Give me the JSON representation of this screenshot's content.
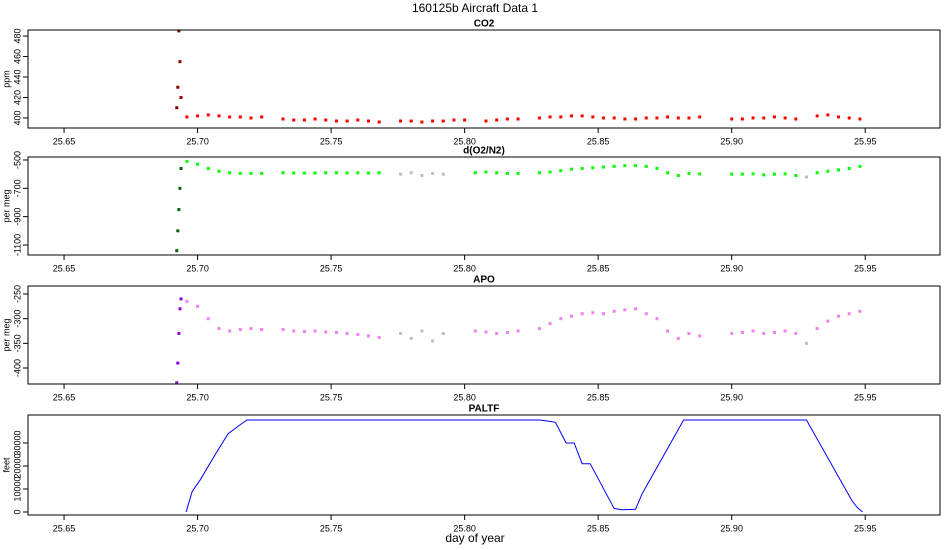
{
  "title": "160125b   Aircraft Data 1",
  "xlabel": "day of year",
  "chart_data": [
    {
      "type": "scatter",
      "title": "CO2",
      "ylabel": "ppm",
      "x": [
        25.6922,
        25.6926,
        25.693,
        25.6934,
        25.6938,
        25.696,
        25.7,
        25.704,
        25.708,
        25.712,
        25.716,
        25.72,
        25.724,
        25.728,
        25.732,
        25.736,
        25.74,
        25.744,
        25.748,
        25.752,
        25.756,
        25.76,
        25.764,
        25.768,
        25.772,
        25.776,
        25.78,
        25.784,
        25.788,
        25.792,
        25.796,
        25.8,
        25.804,
        25.808,
        25.812,
        25.816,
        25.82,
        25.824,
        25.828,
        25.832,
        25.836,
        25.84,
        25.844,
        25.848,
        25.852,
        25.856,
        25.86,
        25.864,
        25.868,
        25.872,
        25.876,
        25.88,
        25.884,
        25.888,
        25.892,
        25.896,
        25.9,
        25.904,
        25.908,
        25.912,
        25.916,
        25.92,
        25.924,
        25.928,
        25.932,
        25.936,
        25.94,
        25.944,
        25.948
      ],
      "series": [
        {
          "color": "#8b0000",
          "values": [
            410,
            430,
            485,
            455,
            420,
            null,
            null,
            null,
            null,
            null,
            null,
            null,
            null,
            null,
            null,
            null,
            null,
            null,
            null,
            null,
            null,
            null,
            null,
            null,
            null,
            null,
            null,
            null,
            null,
            null,
            null,
            null,
            null,
            null,
            null,
            null,
            null,
            null,
            null,
            null,
            null,
            null,
            null,
            null,
            null,
            null,
            null,
            null,
            null,
            null,
            null,
            null,
            null,
            null,
            null,
            null,
            null,
            null,
            null,
            null,
            null,
            null,
            null,
            null,
            null,
            null,
            null,
            null,
            null
          ]
        },
        {
          "color": "#ff0000",
          "values": [
            null,
            null,
            null,
            null,
            null,
            401,
            402,
            403,
            402,
            401,
            401,
            400,
            401,
            null,
            399,
            398,
            398,
            399,
            398,
            397,
            397,
            398,
            397,
            396,
            null,
            397,
            397,
            396,
            397,
            397,
            398,
            398,
            null,
            397,
            398,
            399,
            399,
            null,
            400,
            401,
            401,
            402,
            402,
            401,
            400,
            400,
            399,
            399,
            400,
            400,
            401,
            400,
            400,
            401,
            null,
            null,
            399,
            399,
            400,
            400,
            401,
            400,
            399,
            null,
            402,
            403,
            401,
            400,
            399
          ]
        }
      ],
      "xlim": [
        25.6365,
        25.978
      ],
      "xticks": [
        25.65,
        {
          "value": 25.7,
          "label": "25.70"
        },
        25.75,
        {
          "value": 25.8,
          "label": "25.80"
        },
        25.85,
        {
          "value": 25.9,
          "label": "25.90"
        },
        25.95
      ],
      "ylim": [
        390.2,
        485.9
      ],
      "yticks": [
        400,
        420,
        440,
        460,
        480
      ]
    },
    {
      "type": "scatter",
      "title": "d(O2/N2)",
      "ylabel": "per meg",
      "x": [
        25.6922,
        25.6926,
        25.693,
        25.6934,
        25.6938,
        25.696,
        25.7,
        25.704,
        25.708,
        25.712,
        25.716,
        25.72,
        25.724,
        25.728,
        25.732,
        25.736,
        25.74,
        25.744,
        25.748,
        25.752,
        25.756,
        25.76,
        25.764,
        25.768,
        25.772,
        25.776,
        25.78,
        25.784,
        25.788,
        25.792,
        25.796,
        25.8,
        25.804,
        25.808,
        25.812,
        25.816,
        25.82,
        25.824,
        25.828,
        25.832,
        25.836,
        25.84,
        25.844,
        25.848,
        25.852,
        25.856,
        25.86,
        25.864,
        25.868,
        25.872,
        25.876,
        25.88,
        25.884,
        25.888,
        25.892,
        25.896,
        25.9,
        25.904,
        25.908,
        25.912,
        25.916,
        25.92,
        25.924,
        25.928,
        25.932,
        25.936,
        25.94,
        25.944,
        25.948
      ],
      "series": [
        {
          "color": "#006400",
          "values": [
            -1140,
            -1000,
            -850,
            -700,
            -560,
            null,
            null,
            null,
            null,
            null,
            null,
            null,
            null,
            null,
            null,
            null,
            null,
            null,
            null,
            null,
            null,
            null,
            null,
            null,
            null,
            null,
            null,
            null,
            null,
            null,
            null,
            null,
            null,
            null,
            null,
            null,
            null,
            null,
            null,
            null,
            null,
            null,
            null,
            null,
            null,
            null,
            null,
            null,
            null,
            null,
            null,
            null,
            null,
            null,
            null,
            null,
            null,
            null,
            null,
            null,
            null,
            null,
            null,
            null,
            null,
            null,
            null,
            null,
            null
          ]
        },
        {
          "color": "#00ff00",
          "values": [
            null,
            null,
            null,
            null,
            null,
            -510,
            -530,
            -560,
            -580,
            -590,
            -595,
            -595,
            -595,
            null,
            -590,
            -592,
            -593,
            -592,
            -590,
            -590,
            -591,
            -590,
            -592,
            -590,
            null,
            null,
            null,
            null,
            null,
            null,
            null,
            null,
            -590,
            -585,
            -590,
            -595,
            -595,
            null,
            -590,
            -585,
            -575,
            -565,
            -560,
            -555,
            -550,
            -545,
            -540,
            -540,
            -545,
            -560,
            -590,
            -610,
            -595,
            -598,
            null,
            null,
            -600,
            -600,
            -598,
            -605,
            -600,
            -598,
            -610,
            null,
            -590,
            -580,
            -570,
            -560,
            -545
          ]
        },
        {
          "color": "#bebebe",
          "values": [
            null,
            null,
            null,
            null,
            null,
            null,
            null,
            null,
            null,
            null,
            null,
            null,
            null,
            null,
            null,
            null,
            null,
            null,
            null,
            null,
            null,
            null,
            null,
            null,
            null,
            -600,
            -590,
            -610,
            -595,
            -600,
            null,
            null,
            null,
            null,
            null,
            null,
            null,
            null,
            null,
            null,
            null,
            null,
            null,
            null,
            null,
            null,
            null,
            null,
            null,
            null,
            null,
            null,
            null,
            null,
            null,
            null,
            null,
            null,
            null,
            null,
            null,
            null,
            null,
            -620,
            null,
            null,
            null,
            null,
            null
          ]
        }
      ],
      "xlim": [
        25.6365,
        25.978
      ],
      "xticks": [
        25.65,
        {
          "value": 25.7,
          "label": "25.70"
        },
        25.75,
        {
          "value": 25.8,
          "label": "25.80"
        },
        25.85,
        {
          "value": 25.9,
          "label": "25.90"
        },
        25.95
      ],
      "ylim": [
        -1170.6,
        -479
      ],
      "yticks": [
        -1100,
        -900,
        -700,
        -500
      ]
    },
    {
      "type": "scatter",
      "title": "APO",
      "ylabel": "per meg",
      "x": [
        25.6922,
        25.6926,
        25.693,
        25.6934,
        25.6938,
        25.696,
        25.7,
        25.704,
        25.708,
        25.712,
        25.716,
        25.72,
        25.724,
        25.728,
        25.732,
        25.736,
        25.74,
        25.744,
        25.748,
        25.752,
        25.756,
        25.76,
        25.764,
        25.768,
        25.772,
        25.776,
        25.78,
        25.784,
        25.788,
        25.792,
        25.796,
        25.8,
        25.804,
        25.808,
        25.812,
        25.816,
        25.82,
        25.824,
        25.828,
        25.832,
        25.836,
        25.84,
        25.844,
        25.848,
        25.852,
        25.856,
        25.86,
        25.864,
        25.868,
        25.872,
        25.876,
        25.88,
        25.884,
        25.888,
        25.892,
        25.896,
        25.9,
        25.904,
        25.908,
        25.912,
        25.916,
        25.92,
        25.924,
        25.928,
        25.932,
        25.936,
        25.94,
        25.944,
        25.948
      ],
      "series": [
        {
          "color": "#9400d3",
          "values": [
            -430,
            -390,
            -330,
            -280,
            -260,
            null,
            null,
            null,
            null,
            null,
            null,
            null,
            null,
            null,
            null,
            null,
            null,
            null,
            null,
            null,
            null,
            null,
            null,
            null,
            null,
            null,
            null,
            null,
            null,
            null,
            null,
            null,
            null,
            null,
            null,
            null,
            null,
            null,
            null,
            null,
            null,
            null,
            null,
            null,
            null,
            null,
            null,
            null,
            null,
            null,
            null,
            null,
            null,
            null,
            null,
            null,
            null,
            null,
            null,
            null,
            null,
            null,
            null,
            null,
            null,
            null,
            null,
            null,
            null
          ]
        },
        {
          "color": "#ee82ee",
          "values": [
            null,
            null,
            null,
            null,
            null,
            -265,
            -275,
            -300,
            -320,
            -325,
            -322,
            -320,
            -322,
            null,
            -322,
            -325,
            -326,
            -325,
            -327,
            -328,
            -330,
            -332,
            -335,
            -338,
            null,
            null,
            null,
            null,
            null,
            null,
            null,
            null,
            -325,
            -327,
            -330,
            -328,
            -325,
            null,
            -320,
            -310,
            -300,
            -295,
            -290,
            -288,
            -290,
            -285,
            -282,
            -280,
            -290,
            -300,
            -325,
            -340,
            -330,
            -335,
            null,
            null,
            -330,
            -328,
            -325,
            -330,
            -328,
            -325,
            -330,
            null,
            -320,
            -305,
            -295,
            -290,
            -285
          ]
        },
        {
          "color": "#bebebe",
          "values": [
            null,
            null,
            null,
            null,
            null,
            null,
            null,
            null,
            null,
            null,
            null,
            null,
            null,
            null,
            null,
            null,
            null,
            null,
            null,
            null,
            null,
            null,
            null,
            null,
            null,
            -330,
            -340,
            -325,
            -345,
            -330,
            null,
            null,
            null,
            null,
            null,
            null,
            null,
            null,
            null,
            null,
            null,
            null,
            null,
            null,
            null,
            null,
            null,
            null,
            null,
            null,
            null,
            null,
            null,
            null,
            null,
            null,
            null,
            null,
            null,
            null,
            null,
            null,
            null,
            -350,
            null,
            null,
            null,
            null,
            null
          ]
        }
      ],
      "xlim": [
        25.6365,
        25.978
      ],
      "xticks": [
        25.65,
        {
          "value": 25.7,
          "label": "25.70"
        },
        25.75,
        {
          "value": 25.8,
          "label": "25.80"
        },
        25.85,
        {
          "value": 25.9,
          "label": "25.90"
        },
        25.95
      ],
      "ylim": [
        -432.4,
        -233.8
      ],
      "yticks": [
        -400,
        -350,
        -300,
        -250
      ]
    },
    {
      "type": "line",
      "title": "PALTF",
      "ylabel": "feet",
      "x": [
        25.6957,
        25.698,
        25.701,
        25.7066,
        25.7114,
        25.716,
        25.7185,
        25.828,
        25.8313,
        25.834,
        25.838,
        25.841,
        25.844,
        25.847,
        25.856,
        25.859,
        25.864,
        25.8665,
        25.882,
        25.928,
        25.945,
        25.947,
        25.949
      ],
      "series": [
        {
          "color": "#0000ff",
          "values": [
            0,
            9000,
            14000,
            25000,
            34000,
            38000,
            40000,
            40000,
            39500,
            39000,
            30000,
            30000,
            21000,
            21000,
            1500,
            1000,
            1200,
            8000,
            40000,
            40000,
            5000,
            2000,
            0
          ]
        }
      ],
      "xlim": [
        25.6365,
        25.978
      ],
      "xticks": [
        25.65,
        {
          "value": 25.7,
          "label": "25.70"
        },
        25.75,
        {
          "value": 25.8,
          "label": "25.80"
        },
        25.85,
        {
          "value": 25.9,
          "label": "25.90"
        },
        25.95
      ],
      "ylim": [
        -1304,
        42174
      ],
      "yticks": [
        0,
        10000,
        20000,
        30000
      ]
    }
  ]
}
